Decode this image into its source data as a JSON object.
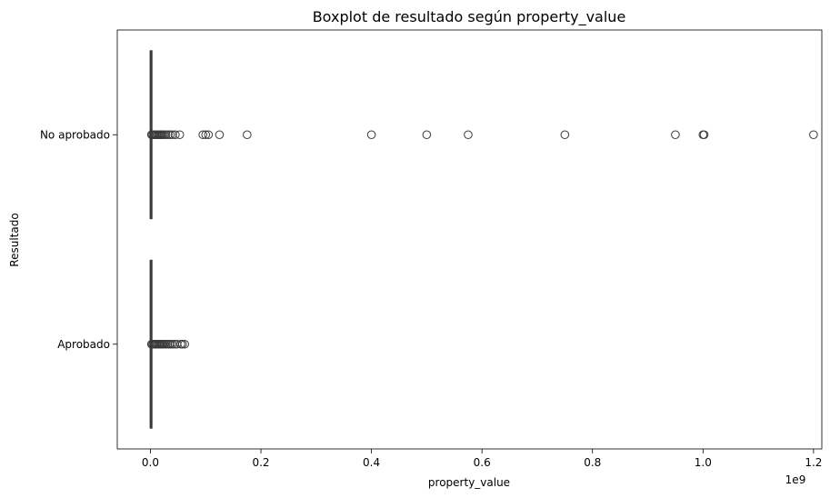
{
  "chart_data": {
    "type": "boxplot",
    "title": "Boxplot de resultado según property_value",
    "xlabel": "property_value",
    "ylabel": "Resultado",
    "x_offset_label": "1e9",
    "x_scale": 1000000000,
    "xlim": [
      -0.06,
      1.215
    ],
    "x_ticks": [
      0.0,
      0.2,
      0.4,
      0.6,
      0.8,
      1.0,
      1.2
    ],
    "x_tick_labels": [
      "0.0",
      "0.2",
      "0.4",
      "0.6",
      "0.8",
      "1.0",
      "1.2"
    ],
    "categories": [
      "No aprobado",
      "Aprobado"
    ],
    "series": [
      {
        "category": "No aprobado",
        "q1": 0.0,
        "median": 0.0,
        "q3": 0.001,
        "whisker_low": 0.0,
        "whisker_high": 0.002,
        "outliers": [
          0.002,
          0.004,
          0.006,
          0.008,
          0.01,
          0.012,
          0.014,
          0.016,
          0.018,
          0.02,
          0.022,
          0.025,
          0.028,
          0.032,
          0.036,
          0.04,
          0.045,
          0.053,
          0.095,
          0.1,
          0.105,
          0.125,
          0.175,
          0.4,
          0.5,
          0.575,
          0.75,
          0.95,
          1.0,
          1.002,
          1.2
        ]
      },
      {
        "category": "Aprobado",
        "q1": 0.0,
        "median": 0.0,
        "q3": 0.001,
        "whisker_low": 0.0,
        "whisker_high": 0.002,
        "outliers": [
          0.002,
          0.004,
          0.006,
          0.008,
          0.01,
          0.012,
          0.014,
          0.016,
          0.018,
          0.02,
          0.022,
          0.025,
          0.028,
          0.031,
          0.034,
          0.037,
          0.04,
          0.044,
          0.048,
          0.055,
          0.058,
          0.062
        ]
      }
    ],
    "box_color": "#3a3a3a",
    "grid": false,
    "legend": false
  }
}
